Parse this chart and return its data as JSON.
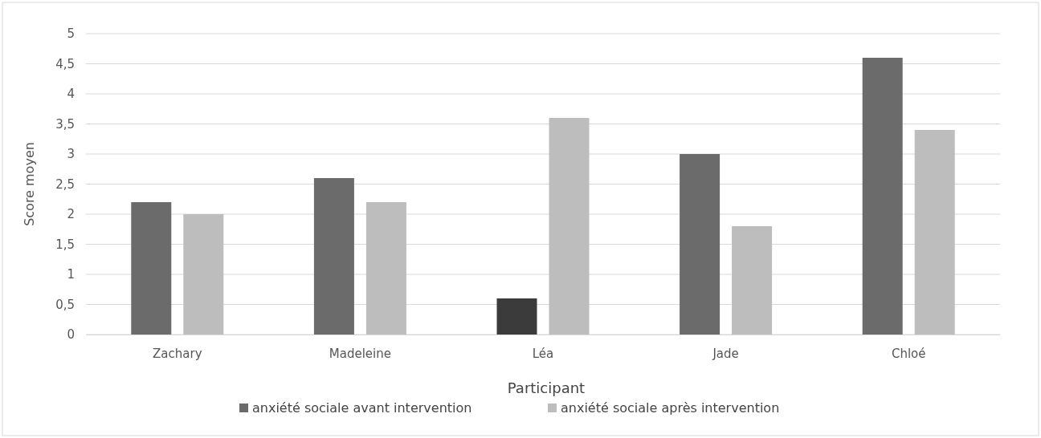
{
  "chart_data": {
    "type": "bar",
    "xlabel": "Participant",
    "ylabel": "Score moyen",
    "categories": [
      "Zachary",
      "Madeleine",
      "Léa",
      "Jade",
      "Chloé"
    ],
    "series": [
      {
        "name": "anxiété sociale avant intervention",
        "color": "#6b6b6b",
        "colors": [
          "#6b6b6b",
          "#6b6b6b",
          "#3b3b3b",
          "#6b6b6b",
          "#6b6b6b"
        ],
        "values": [
          2.2,
          2.6,
          0.6,
          3.0,
          4.6
        ]
      },
      {
        "name": "anxiété sociale après intervention",
        "color": "#bdbdbd",
        "values": [
          2.0,
          2.2,
          3.6,
          1.8,
          3.4
        ]
      }
    ],
    "ylim": [
      0,
      5
    ],
    "yticks": [
      0,
      {
        "value": 0.5,
        "label": "0,5"
      },
      1,
      {
        "value": 1.5,
        "label": "1,5"
      },
      2,
      {
        "value": 2.5,
        "label": "2,5"
      },
      3,
      {
        "value": 3.5,
        "label": "3,5"
      },
      4,
      {
        "value": 4.5,
        "label": "4,5"
      },
      5
    ],
    "grid": "y",
    "legend": "bottom"
  }
}
